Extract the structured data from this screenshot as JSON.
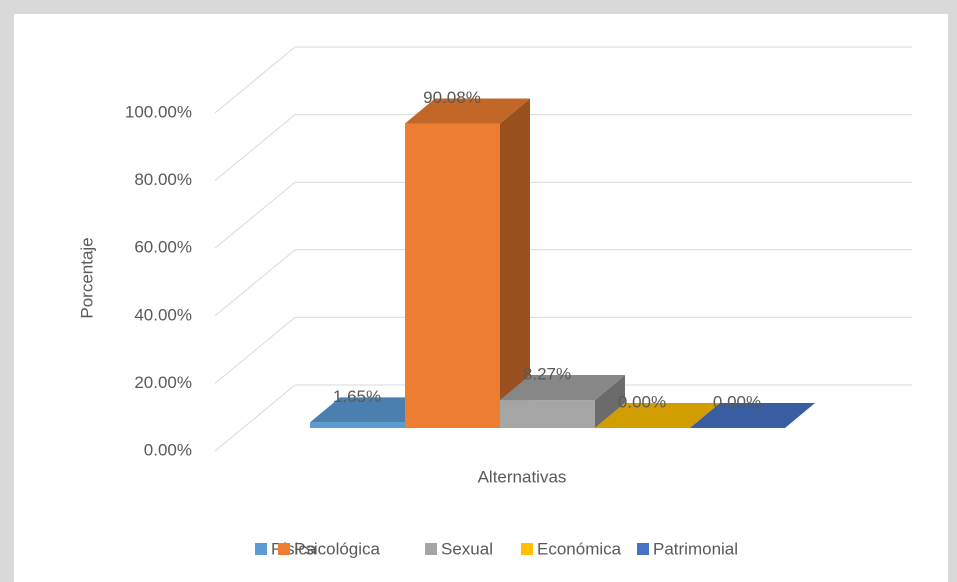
{
  "chart_data": {
    "type": "bar3d",
    "categories": [
      null
    ],
    "xlabel": "Alternativas",
    "ylabel": "Porcentaje",
    "series": [
      {
        "name": "Física",
        "color": "#5b9bd5",
        "values": [
          1.65
        ],
        "value_labels": [
          "1.65%"
        ]
      },
      {
        "name": "Psicológica",
        "color": "#ed7d31",
        "values": [
          90.08
        ],
        "value_labels": [
          "90.08%"
        ]
      },
      {
        "name": "Sexual",
        "color": "#a5a5a5",
        "values": [
          8.27
        ],
        "value_labels": [
          "8.27%"
        ]
      },
      {
        "name": "Económica",
        "color": "#ffc000",
        "values": [
          0.0
        ],
        "value_labels": [
          "0.00%"
        ]
      },
      {
        "name": "Patrimonial",
        "color": "#4472c4",
        "values": [
          0.0
        ],
        "value_labels": [
          "0.00%"
        ]
      }
    ],
    "ylim": [
      0,
      100
    ],
    "yticks": [
      {
        "value": 0,
        "label": "0.00%"
      },
      {
        "value": 20,
        "label": "20.00%"
      },
      {
        "value": 40,
        "label": "40.00%"
      },
      {
        "value": 60,
        "label": "60.00%"
      },
      {
        "value": 80,
        "label": "80.00%"
      },
      {
        "value": 100,
        "label": "100.00%"
      }
    ],
    "grid": true,
    "legend": "bottom"
  }
}
